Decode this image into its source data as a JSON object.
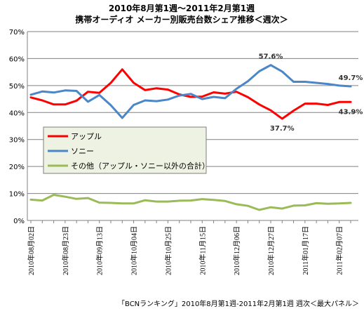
{
  "chart_data": {
    "type": "line",
    "title": "2010年8月第1週〜2011年2月第1週",
    "subtitle": "携帯オーディオ メーカー別販売台数シェア推移＜週次＞",
    "footer": "「BCNランキング」2010年8月第1週-2011年2月第1週 週次＜最大パネル＞",
    "ylim": [
      0,
      70
    ],
    "yticks": [
      "0%",
      "10%",
      "20%",
      "30%",
      "40%",
      "50%",
      "60%",
      "70%"
    ],
    "grid": true,
    "legend_position": "center-left",
    "xtick_labels": [
      "2010年08月02日",
      "2010年08月23日",
      "2010年09月13日",
      "2010年10月04日",
      "2010年10月25日",
      "2010年11月15日",
      "2010年12月06日",
      "2010年12月27日",
      "2011年01月17日",
      "2011年02月07日"
    ],
    "series": [
      {
        "name": "アップル",
        "color": "#ff0000",
        "values": [
          45.6,
          44.5,
          43.0,
          43.0,
          44.4,
          47.7,
          47.3,
          51.0,
          56.0,
          51.0,
          48.3,
          49.0,
          48.5,
          46.7,
          45.8,
          45.9,
          47.5,
          47.0,
          47.7,
          45.7,
          43.0,
          40.8,
          37.7,
          40.7,
          43.3,
          43.3,
          42.8,
          43.9,
          43.9
        ]
      },
      {
        "name": "ソニー",
        "color": "#4a86c8",
        "values": [
          46.6,
          47.8,
          47.4,
          48.2,
          48.0,
          44.0,
          46.5,
          42.7,
          38.0,
          42.8,
          44.5,
          44.2,
          44.8,
          46.3,
          46.9,
          45.0,
          45.8,
          45.3,
          48.8,
          51.6,
          55.3,
          57.6,
          55.2,
          51.4,
          51.4,
          51.0,
          50.6,
          50.0,
          49.7
        ]
      },
      {
        "name": "その他（アップル・ソニー以外の合計）",
        "color": "#9bbb59",
        "values": [
          7.7,
          7.4,
          9.5,
          8.8,
          8.0,
          8.3,
          6.6,
          6.5,
          6.3,
          6.3,
          7.5,
          7.0,
          7.0,
          7.3,
          7.4,
          7.9,
          7.6,
          7.2,
          6.0,
          5.4,
          3.9,
          4.9,
          4.4,
          5.5,
          5.6,
          6.4,
          6.2,
          6.3,
          6.5
        ]
      }
    ],
    "annotations": [
      {
        "text": "57.6%",
        "series": 1,
        "index": 21,
        "place": "above"
      },
      {
        "text": "37.7%",
        "series": 0,
        "index": 22,
        "place": "below"
      },
      {
        "text": "49.7%",
        "series": 1,
        "index": 28,
        "place": "above"
      },
      {
        "text": "43.9%",
        "series": 0,
        "index": 28,
        "place": "below"
      }
    ]
  }
}
